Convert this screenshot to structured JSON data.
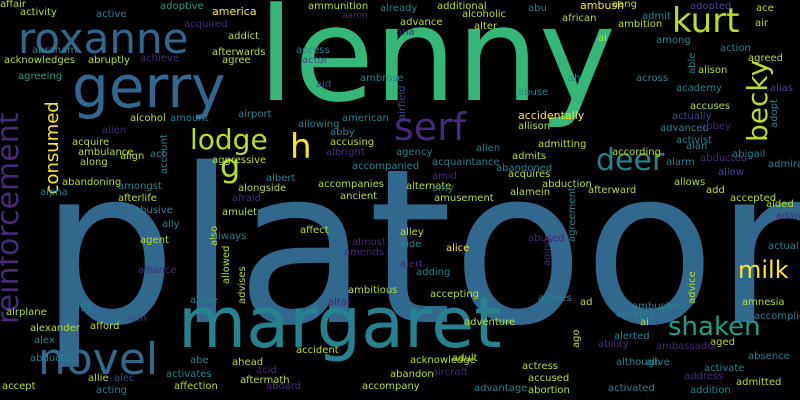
{
  "word_cloud": {
    "background": "#000000",
    "palette": {
      "yellow": "#fde725",
      "lime": "#b5de2b",
      "green": "#6ccd5a",
      "emerald": "#35b779",
      "seafoam": "#1f9e89",
      "teal": "#26828e",
      "steel": "#31688e",
      "indigo": "#3e4a89",
      "violet": "#482878",
      "purple": "#440154"
    },
    "words": [
      {
        "text": "lenny",
        "color": "emerald"
      },
      {
        "text": "platoon",
        "color": "steel"
      },
      {
        "text": "margaret",
        "color": "teal"
      },
      {
        "text": "roxanne",
        "color": "steel"
      },
      {
        "text": "gerry",
        "color": "steel"
      },
      {
        "text": "kurt",
        "color": "lime"
      },
      {
        "text": "reinforcement",
        "color": "violet"
      },
      {
        "text": "novel",
        "color": "steel"
      },
      {
        "text": "serf",
        "color": "violet"
      },
      {
        "text": "lodge",
        "color": "lime"
      },
      {
        "text": "h",
        "color": "yellow"
      },
      {
        "text": "g",
        "color": "lime"
      },
      {
        "text": "becky",
        "color": "lime"
      },
      {
        "text": "deer",
        "color": "teal"
      },
      {
        "text": "shaken",
        "color": "seafoam"
      },
      {
        "text": "milk",
        "color": "yellow"
      },
      {
        "text": "consumed",
        "color": "yellow"
      },
      {
        "text": "activity",
        "color": "lime"
      },
      {
        "text": "active",
        "color": "teal"
      },
      {
        "text": "adoptive",
        "color": "seafoam"
      },
      {
        "text": "america",
        "color": "yellow"
      },
      {
        "text": "ammunition",
        "color": "lime"
      },
      {
        "text": "already",
        "color": "teal"
      },
      {
        "text": "additional",
        "color": "lime"
      },
      {
        "text": "abu",
        "color": "teal"
      },
      {
        "text": "ambush",
        "color": "yellow"
      },
      {
        "text": "aang",
        "color": "lime"
      },
      {
        "text": "adopted",
        "color": "indigo"
      },
      {
        "text": "ace",
        "color": "lime"
      },
      {
        "text": "acquired",
        "color": "violet"
      },
      {
        "text": "aaron",
        "color": "violet"
      },
      {
        "text": "advance",
        "color": "lime"
      },
      {
        "text": "alcoholic",
        "color": "lime"
      },
      {
        "text": "african",
        "color": "lime"
      },
      {
        "text": "admit",
        "color": "teal"
      },
      {
        "text": "air",
        "color": "lime"
      },
      {
        "text": "ambition",
        "color": "lime"
      },
      {
        "text": "addict",
        "color": "lime"
      },
      {
        "text": "ana",
        "color": "violet"
      },
      {
        "text": "alter",
        "color": "lime"
      },
      {
        "text": "al",
        "color": "lime"
      },
      {
        "text": "among",
        "color": "teal"
      },
      {
        "text": "abraham",
        "color": "teal"
      },
      {
        "text": "afterwards",
        "color": "lime"
      },
      {
        "text": "access",
        "color": "teal"
      },
      {
        "text": "acknowledges",
        "color": "lime"
      },
      {
        "text": "abruptly",
        "color": "lime"
      },
      {
        "text": "achieve",
        "color": "violet"
      },
      {
        "text": "agree",
        "color": "lime"
      },
      {
        "text": "actor",
        "color": "indigo"
      },
      {
        "text": "aid",
        "color": "indigo"
      },
      {
        "text": "action",
        "color": "teal"
      },
      {
        "text": "able",
        "color": "teal"
      },
      {
        "text": "agreed",
        "color": "lime"
      },
      {
        "text": "alison",
        "color": "lime"
      },
      {
        "text": "agreeing",
        "color": "seafoam"
      },
      {
        "text": "ambrose",
        "color": "teal"
      },
      {
        "text": "airfield",
        "color": "indigo"
      },
      {
        "text": "ah",
        "color": "teal"
      },
      {
        "text": "across",
        "color": "teal"
      },
      {
        "text": "alias",
        "color": "indigo"
      },
      {
        "text": "abuse",
        "color": "teal"
      },
      {
        "text": "academy",
        "color": "teal"
      },
      {
        "text": "alcohol",
        "color": "lime"
      },
      {
        "text": "amount",
        "color": "teal"
      },
      {
        "text": "airport",
        "color": "teal"
      },
      {
        "text": "american",
        "color": "teal"
      },
      {
        "text": "accidentally",
        "color": "yellow"
      },
      {
        "text": "accuses",
        "color": "lime"
      },
      {
        "text": "adopt",
        "color": "teal"
      },
      {
        "text": "actually",
        "color": "indigo"
      },
      {
        "text": "allison",
        "color": "lime"
      },
      {
        "text": "advanced",
        "color": "teal"
      },
      {
        "text": "abbey",
        "color": "violet"
      },
      {
        "text": "allowing",
        "color": "teal"
      },
      {
        "text": "abby",
        "color": "teal"
      },
      {
        "text": "accusing",
        "color": "lime"
      },
      {
        "text": "acquire",
        "color": "lime"
      },
      {
        "text": "alien",
        "color": "violet"
      },
      {
        "text": "account",
        "color": "teal"
      },
      {
        "text": "activist",
        "color": "teal"
      },
      {
        "text": "alan",
        "color": "teal"
      },
      {
        "text": "abigail",
        "color": "teal"
      },
      {
        "text": "according",
        "color": "lime"
      },
      {
        "text": "admitting",
        "color": "lime"
      },
      {
        "text": "admiral",
        "color": "teal"
      },
      {
        "text": "along",
        "color": "lime"
      },
      {
        "text": "align",
        "color": "lime"
      },
      {
        "text": "act",
        "color": "teal"
      },
      {
        "text": "aggressive",
        "color": "lime"
      },
      {
        "text": "albright",
        "color": "violet"
      },
      {
        "text": "agency",
        "color": "teal"
      },
      {
        "text": "allen",
        "color": "teal"
      },
      {
        "text": "abandoned",
        "color": "teal"
      },
      {
        "text": "abducted",
        "color": "violet"
      },
      {
        "text": "alarm",
        "color": "teal"
      },
      {
        "text": "ambulance",
        "color": "lime"
      },
      {
        "text": "albert",
        "color": "teal"
      },
      {
        "text": "accompanied",
        "color": "teal"
      },
      {
        "text": "acquaintance",
        "color": "teal"
      },
      {
        "text": "admits",
        "color": "lime"
      },
      {
        "text": "agreement",
        "color": "teal"
      },
      {
        "text": "allow",
        "color": "indigo"
      },
      {
        "text": "abandoning",
        "color": "lime"
      },
      {
        "text": "amongst",
        "color": "teal"
      },
      {
        "text": "alongside",
        "color": "lime"
      },
      {
        "text": "accompanies",
        "color": "lime"
      },
      {
        "text": "alternate",
        "color": "lime"
      },
      {
        "text": "amid",
        "color": "violet"
      },
      {
        "text": "acquires",
        "color": "lime"
      },
      {
        "text": "allows",
        "color": "lime"
      },
      {
        "text": "alpha",
        "color": "teal"
      },
      {
        "text": "afterlife",
        "color": "lime"
      },
      {
        "text": "afraid",
        "color": "violet"
      },
      {
        "text": "ancient",
        "color": "lime"
      },
      {
        "text": "amy",
        "color": "teal"
      },
      {
        "text": "abduction",
        "color": "lime"
      },
      {
        "text": "add",
        "color": "lime"
      },
      {
        "text": "abusive",
        "color": "teal"
      },
      {
        "text": "amusement",
        "color": "lime"
      },
      {
        "text": "alamein",
        "color": "lime"
      },
      {
        "text": "afterward",
        "color": "lime"
      },
      {
        "text": "accepted",
        "color": "lime"
      },
      {
        "text": "ally",
        "color": "teal"
      },
      {
        "text": "also",
        "color": "lime"
      },
      {
        "text": "amulet",
        "color": "lime"
      },
      {
        "text": "abused",
        "color": "violet"
      },
      {
        "text": "aided",
        "color": "lime"
      },
      {
        "text": "agent",
        "color": "lime"
      },
      {
        "text": "always",
        "color": "teal"
      },
      {
        "text": "affect",
        "color": "lime"
      },
      {
        "text": "amends",
        "color": "violet"
      },
      {
        "text": "alley",
        "color": "lime"
      },
      {
        "text": "alice",
        "color": "yellow"
      },
      {
        "text": "aging",
        "color": "violet"
      },
      {
        "text": "adam",
        "color": "violet"
      },
      {
        "text": "allowed",
        "color": "lime"
      },
      {
        "text": "almost",
        "color": "violet"
      },
      {
        "text": "aide",
        "color": "teal"
      },
      {
        "text": "actual",
        "color": "teal"
      },
      {
        "text": "advises",
        "color": "lime"
      },
      {
        "text": "alliance",
        "color": "violet"
      },
      {
        "text": "alert",
        "color": "violet"
      },
      {
        "text": "adding",
        "color": "teal"
      },
      {
        "text": "advice",
        "color": "lime"
      },
      {
        "text": "alone",
        "color": "teal"
      },
      {
        "text": "ambitious",
        "color": "lime"
      },
      {
        "text": "age",
        "color": "teal"
      },
      {
        "text": "accepting",
        "color": "lime"
      },
      {
        "text": "agrees",
        "color": "teal"
      },
      {
        "text": "ad",
        "color": "lime"
      },
      {
        "text": "amnesia",
        "color": "lime"
      },
      {
        "text": "airplane",
        "color": "lime"
      },
      {
        "text": "altar",
        "color": "violet"
      },
      {
        "text": "ambushed",
        "color": "teal"
      },
      {
        "text": "accomplice",
        "color": "teal"
      },
      {
        "text": "alexander",
        "color": "lime"
      },
      {
        "text": "aim",
        "color": "indigo"
      },
      {
        "text": "accepts",
        "color": "teal"
      },
      {
        "text": "adventure",
        "color": "lime"
      },
      {
        "text": "ago",
        "color": "lime"
      },
      {
        "text": "ai",
        "color": "lime"
      },
      {
        "text": "alex",
        "color": "teal"
      },
      {
        "text": "afford",
        "color": "lime"
      },
      {
        "text": "alerted",
        "color": "teal"
      },
      {
        "text": "aged",
        "color": "lime"
      },
      {
        "text": "ambassador",
        "color": "violet"
      },
      {
        "text": "accident",
        "color": "lime"
      },
      {
        "text": "adult",
        "color": "lime"
      },
      {
        "text": "ability",
        "color": "violet"
      },
      {
        "text": "absence",
        "color": "teal"
      },
      {
        "text": "abducts",
        "color": "teal"
      },
      {
        "text": "allie",
        "color": "lime"
      },
      {
        "text": "alec",
        "color": "indigo"
      },
      {
        "text": "abe",
        "color": "teal"
      },
      {
        "text": "ahead",
        "color": "lime"
      },
      {
        "text": "acknowledge",
        "color": "lime"
      },
      {
        "text": "although",
        "color": "teal"
      },
      {
        "text": "alive",
        "color": "teal"
      },
      {
        "text": "activate",
        "color": "teal"
      },
      {
        "text": "activates",
        "color": "teal"
      },
      {
        "text": "acid",
        "color": "violet"
      },
      {
        "text": "aircraft",
        "color": "violet"
      },
      {
        "text": "address",
        "color": "violet"
      },
      {
        "text": "accept",
        "color": "lime"
      },
      {
        "text": "affection",
        "color": "lime"
      },
      {
        "text": "aftermath",
        "color": "lime"
      },
      {
        "text": "abandon",
        "color": "lime"
      },
      {
        "text": "actress",
        "color": "lime"
      },
      {
        "text": "accused",
        "color": "lime"
      },
      {
        "text": "admitted",
        "color": "lime"
      },
      {
        "text": "acting",
        "color": "teal"
      },
      {
        "text": "aboard",
        "color": "violet"
      },
      {
        "text": "accompany",
        "color": "lime"
      },
      {
        "text": "advantage",
        "color": "teal"
      },
      {
        "text": "abortion",
        "color": "lime"
      },
      {
        "text": "activated",
        "color": "teal"
      },
      {
        "text": "addition",
        "color": "teal"
      },
      {
        "text": "affair",
        "color": "lime"
      }
    ]
  }
}
